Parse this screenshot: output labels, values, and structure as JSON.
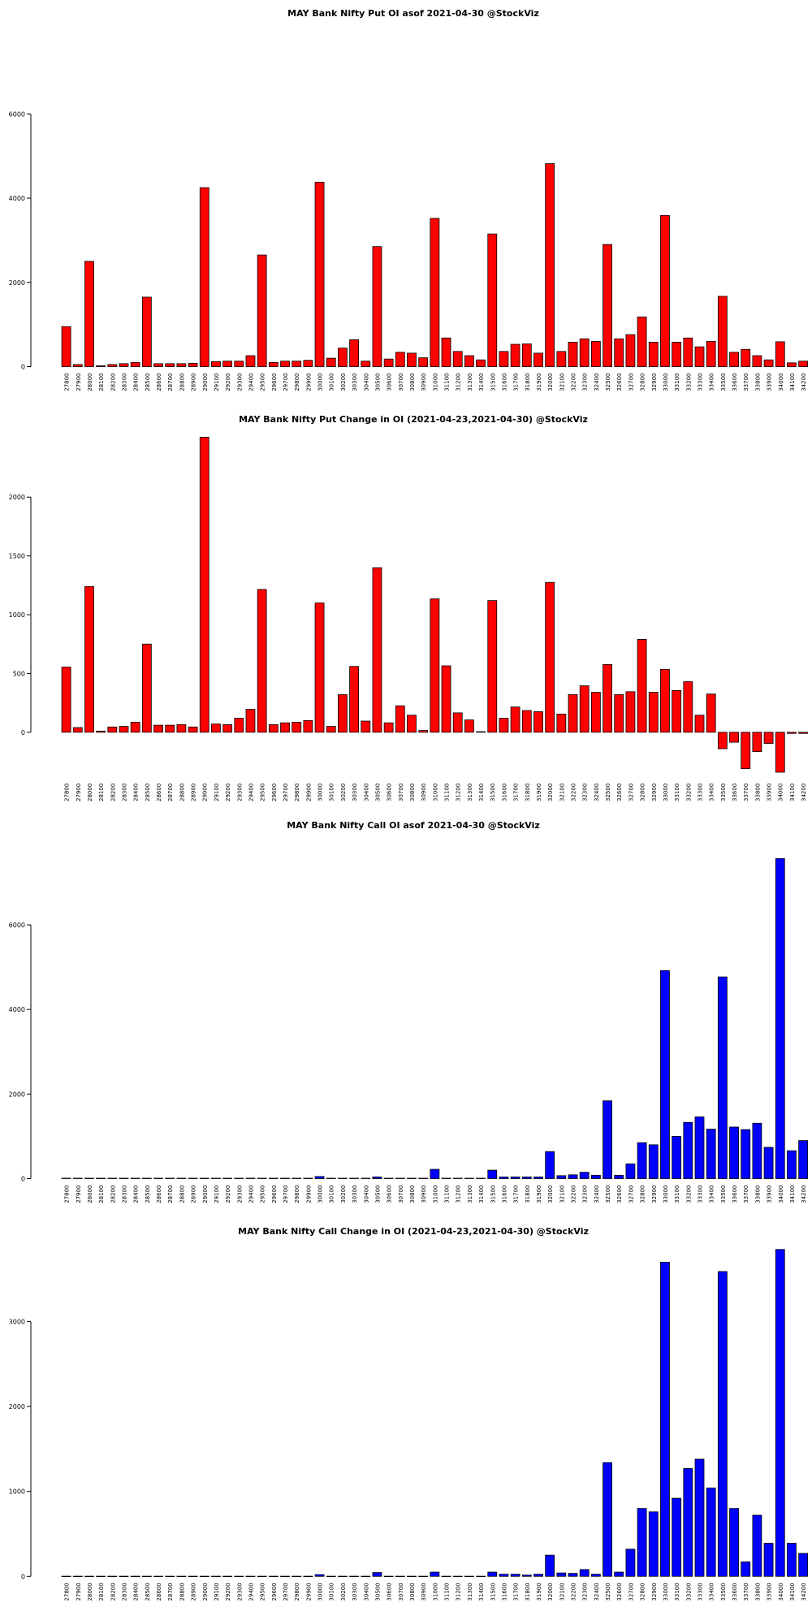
{
  "chart_data": [
    {
      "type": "bar",
      "title": "MAY Bank Nifty Put OI asof 2021-04-30 @StockViz",
      "color": "#ff0000",
      "categories": [
        "27800",
        "27900",
        "28000",
        "28100",
        "28200",
        "28300",
        "28400",
        "28500",
        "28600",
        "28700",
        "28800",
        "28900",
        "29000",
        "29100",
        "29200",
        "29300",
        "29400",
        "29500",
        "29600",
        "29700",
        "29800",
        "29900",
        "30000",
        "30100",
        "30200",
        "30300",
        "30400",
        "30500",
        "30600",
        "30700",
        "30800",
        "30900",
        "31000",
        "31100",
        "31200",
        "31300",
        "31400",
        "31500",
        "31600",
        "31700",
        "31800",
        "31900",
        "32000",
        "32100",
        "32200",
        "32300",
        "32400",
        "32500",
        "32600",
        "32700",
        "32800",
        "32900",
        "33000",
        "33100",
        "33200",
        "33300",
        "33400",
        "33500",
        "33600",
        "33700",
        "33800",
        "33900",
        "34000",
        "34100",
        "34200"
      ],
      "values": [
        950,
        50,
        2500,
        20,
        50,
        70,
        100,
        1650,
        70,
        70,
        70,
        80,
        4250,
        120,
        130,
        130,
        260,
        2650,
        100,
        130,
        130,
        150,
        4380,
        200,
        440,
        640,
        130,
        2850,
        180,
        340,
        320,
        210,
        3520,
        680,
        360,
        260,
        160,
        3150,
        360,
        530,
        540,
        320,
        4820,
        360,
        580,
        660,
        600,
        2900,
        660,
        760,
        1180,
        580,
        3590,
        580,
        680,
        470,
        600,
        1670,
        340,
        410,
        260,
        160,
        590,
        90,
        130
      ],
      "ylim": [
        0,
        6000
      ],
      "yticks": [
        0,
        2000,
        4000,
        6000
      ]
    },
    {
      "type": "bar",
      "title": "MAY Bank Nifty Put Change in OI (2021-04-23,2021-04-30) @StockViz",
      "color": "#ff0000",
      "categories": [
        "27800",
        "27900",
        "28000",
        "28100",
        "28200",
        "28300",
        "28400",
        "28500",
        "28600",
        "28700",
        "28800",
        "28900",
        "29000",
        "29100",
        "29200",
        "29300",
        "29400",
        "29500",
        "29600",
        "29700",
        "29800",
        "29900",
        "30000",
        "30100",
        "30200",
        "30300",
        "30400",
        "30500",
        "30600",
        "30700",
        "30800",
        "30900",
        "31000",
        "31100",
        "31200",
        "31300",
        "31400",
        "31500",
        "31600",
        "31700",
        "31800",
        "31900",
        "32000",
        "32100",
        "32200",
        "32300",
        "32400",
        "32500",
        "32600",
        "32700",
        "32800",
        "32900",
        "33000",
        "33100",
        "33200",
        "33300",
        "33400",
        "33500",
        "33600",
        "33700",
        "33800",
        "33900",
        "34000",
        "34100",
        "34200"
      ],
      "values": [
        555,
        40,
        1240,
        10,
        45,
        50,
        85,
        750,
        60,
        60,
        65,
        45,
        2510,
        70,
        65,
        120,
        195,
        1215,
        65,
        80,
        85,
        100,
        1100,
        50,
        320,
        560,
        95,
        1400,
        80,
        225,
        145,
        15,
        1135,
        565,
        165,
        105,
        5,
        1120,
        120,
        215,
        185,
        175,
        1275,
        155,
        320,
        395,
        340,
        576,
        320,
        345,
        790,
        340,
        535,
        355,
        430,
        145,
        325,
        -140,
        -85,
        -310,
        -165,
        -95,
        -340,
        -10,
        -10
      ],
      "ylim": [
        -400,
        2550
      ],
      "yticks": [
        0,
        500,
        1000,
        1500,
        2000
      ]
    },
    {
      "type": "bar",
      "title": "MAY Bank Nifty Call OI asof 2021-04-30 @StockViz",
      "color": "#0000ff",
      "categories": [
        "27800",
        "27900",
        "28000",
        "28100",
        "28200",
        "28300",
        "28400",
        "28500",
        "28600",
        "28700",
        "28800",
        "28900",
        "29000",
        "29100",
        "29200",
        "29300",
        "29400",
        "29500",
        "29600",
        "29700",
        "29800",
        "29900",
        "30000",
        "30100",
        "30200",
        "30300",
        "30400",
        "30500",
        "30600",
        "30700",
        "30800",
        "30900",
        "31000",
        "31100",
        "31200",
        "31300",
        "31400",
        "31500",
        "31600",
        "31700",
        "31800",
        "31900",
        "32000",
        "32100",
        "32200",
        "32300",
        "32400",
        "32500",
        "32600",
        "32700",
        "32800",
        "32900",
        "33000",
        "33100",
        "33200",
        "33300",
        "33400",
        "33500",
        "33600",
        "33700",
        "33800",
        "33900",
        "34000",
        "34100",
        "34200"
      ],
      "values": [
        10,
        10,
        10,
        10,
        10,
        10,
        10,
        10,
        10,
        10,
        10,
        10,
        10,
        10,
        10,
        10,
        10,
        10,
        10,
        10,
        10,
        10,
        50,
        10,
        10,
        10,
        10,
        40,
        10,
        10,
        10,
        10,
        220,
        10,
        10,
        10,
        10,
        200,
        40,
        40,
        40,
        40,
        640,
        70,
        90,
        150,
        80,
        1840,
        80,
        350,
        850,
        800,
        4920,
        1000,
        1330,
        1460,
        1170,
        4770,
        1220,
        1160,
        1310,
        740,
        7570,
        660,
        900
      ],
      "ylim": [
        0,
        7700
      ],
      "yticks": [
        0,
        2000,
        4000,
        6000
      ]
    },
    {
      "type": "bar",
      "title": "MAY Bank Nifty Call Change in OI (2021-04-23,2021-04-30) @StockViz",
      "color": "#0000ff",
      "categories": [
        "27800",
        "27900",
        "28000",
        "28100",
        "28200",
        "28300",
        "28400",
        "28500",
        "28600",
        "28700",
        "28800",
        "28900",
        "29000",
        "29100",
        "29200",
        "29300",
        "29400",
        "29500",
        "29600",
        "29700",
        "29800",
        "29900",
        "30000",
        "30100",
        "30200",
        "30300",
        "30400",
        "30500",
        "30600",
        "30700",
        "30800",
        "30900",
        "31000",
        "31100",
        "31200",
        "31300",
        "31400",
        "31500",
        "31600",
        "31700",
        "31800",
        "31900",
        "32000",
        "32100",
        "32200",
        "32300",
        "32400",
        "32500",
        "32600",
        "32700",
        "32800",
        "32900",
        "33000",
        "33100",
        "33200",
        "33300",
        "33400",
        "33500",
        "33600",
        "33700",
        "33800",
        "33900",
        "34000",
        "34100",
        "34200"
      ],
      "values": [
        2,
        2,
        2,
        2,
        2,
        2,
        2,
        2,
        2,
        2,
        2,
        2,
        2,
        2,
        2,
        2,
        2,
        2,
        2,
        2,
        2,
        2,
        20,
        2,
        2,
        2,
        2,
        45,
        2,
        2,
        2,
        2,
        50,
        2,
        2,
        2,
        2,
        50,
        25,
        25,
        15,
        25,
        250,
        40,
        35,
        80,
        25,
        1340,
        50,
        320,
        800,
        760,
        3700,
        920,
        1270,
        1380,
        1040,
        3590,
        800,
        170,
        720,
        390,
        3850,
        390,
        270
      ],
      "ylim": [
        0,
        3900
      ],
      "yticks": [
        0,
        1000,
        2000,
        3000
      ]
    }
  ]
}
